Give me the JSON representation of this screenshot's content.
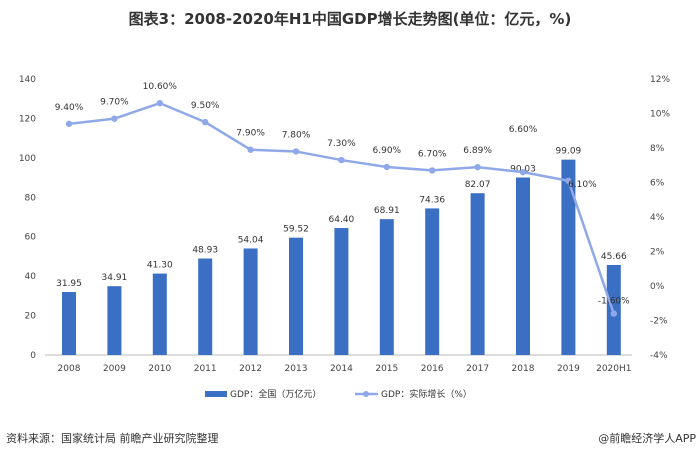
{
  "title": "图表3：2008-2020年H1中国GDP增长走势图(单位：亿元，%)",
  "source": "资料来源：国家统计局 前瞻产业研究院整理",
  "brand": "@前瞻经济学人APP",
  "chart_data": {
    "type": "bar+line",
    "categories": [
      "2008",
      "2009",
      "2010",
      "2011",
      "2012",
      "2013",
      "2014",
      "2015",
      "2016",
      "2017",
      "2018",
      "2019",
      "2020H1"
    ],
    "series": [
      {
        "name": "GDP：全国（万亿元）",
        "type": "bar",
        "axis": "left",
        "color": "#3a6fc4",
        "values": [
          31.95,
          34.91,
          41.3,
          48.93,
          54.04,
          59.52,
          64.4,
          68.91,
          74.36,
          82.07,
          90.03,
          99.09,
          45.66
        ],
        "labels": [
          "31.95",
          "34.91",
          "41.30",
          "48.93",
          "54.04",
          "59.52",
          "64.40",
          "68.91",
          "74.36",
          "82.07",
          "90.03",
          "99.09",
          "45.66"
        ]
      },
      {
        "name": "GDP：实际增长（%）",
        "type": "line",
        "axis": "right",
        "color": "#8fa9e8",
        "values": [
          9.4,
          9.7,
          10.6,
          9.5,
          7.9,
          7.8,
          7.3,
          6.9,
          6.7,
          6.89,
          6.6,
          6.1,
          -1.6
        ],
        "labels": [
          "9.40%",
          "9.70%",
          "10.60%",
          "9.50%",
          "7.90%",
          "7.80%",
          "7.30%",
          "6.90%",
          "6.70%",
          "6.89%",
          "6.60%",
          "6.10%",
          "-1.60%"
        ]
      }
    ],
    "left_axis": {
      "ylim": [
        0,
        140
      ],
      "ticks": [
        "0",
        "20",
        "40",
        "60",
        "80",
        "100",
        "120",
        "140"
      ]
    },
    "right_axis": {
      "ylim": [
        -4,
        12
      ],
      "ticks": [
        "-4%",
        "-2%",
        "0%",
        "2%",
        "4%",
        "6%",
        "8%",
        "10%",
        "12%"
      ]
    },
    "grid": false,
    "legend": "bottom"
  }
}
